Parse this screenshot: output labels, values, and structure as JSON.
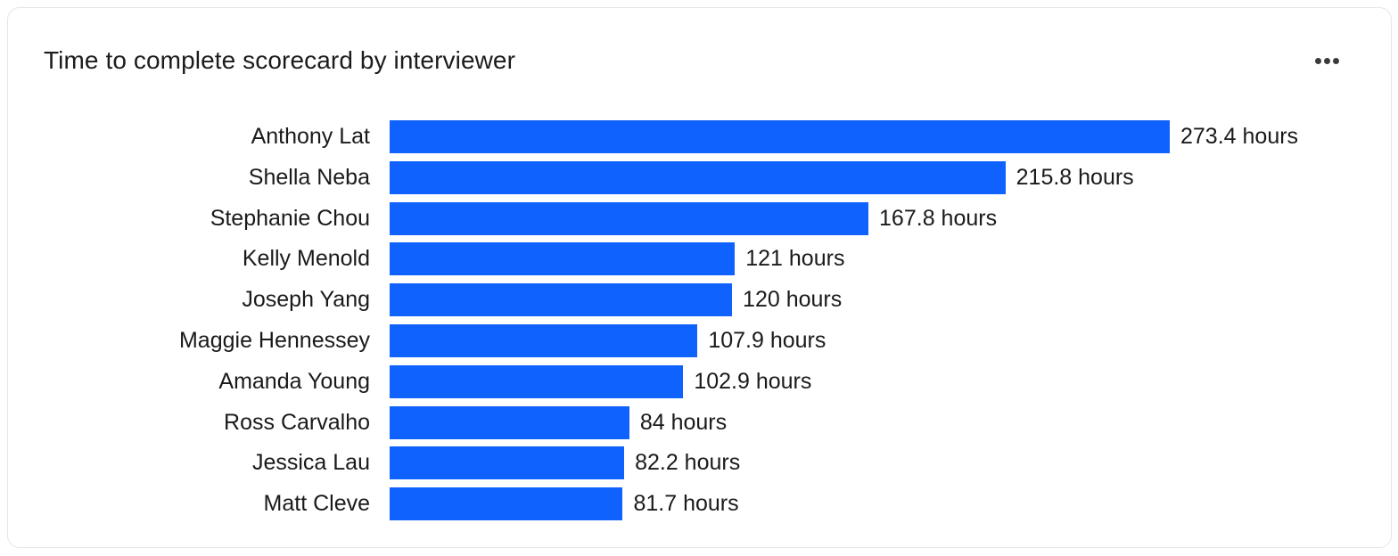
{
  "card": {
    "title": "Time to complete scorecard by interviewer",
    "menu_icon": "more-horizontal-icon"
  },
  "colors": {
    "bar": "#0f62fe",
    "text": "#1a1a1a",
    "border": "#e3e6ea",
    "menu_dots": "#3a3a3c"
  },
  "chart_data": {
    "type": "bar",
    "orientation": "horizontal",
    "title": "Time to complete scorecard by interviewer",
    "xlabel": "",
    "ylabel": "",
    "unit": "hours",
    "grid": false,
    "legend": null,
    "categories": [
      "Anthony Lat",
      "Shella Neba",
      "Stephanie Chou",
      "Kelly Menold",
      "Joseph Yang",
      "Maggie Hennessey",
      "Amanda Young",
      "Ross Carvalho",
      "Jessica Lau",
      "Matt Cleve"
    ],
    "values": [
      273.4,
      215.8,
      167.8,
      121,
      120,
      107.9,
      102.9,
      84,
      82.2,
      81.7
    ],
    "data_labels": [
      "273.4 hours",
      "215.8 hours",
      "167.8 hours",
      "121 hours",
      "120 hours",
      "107.9 hours",
      "102.9 hours",
      "84 hours",
      "82.2 hours",
      "81.7 hours"
    ]
  }
}
